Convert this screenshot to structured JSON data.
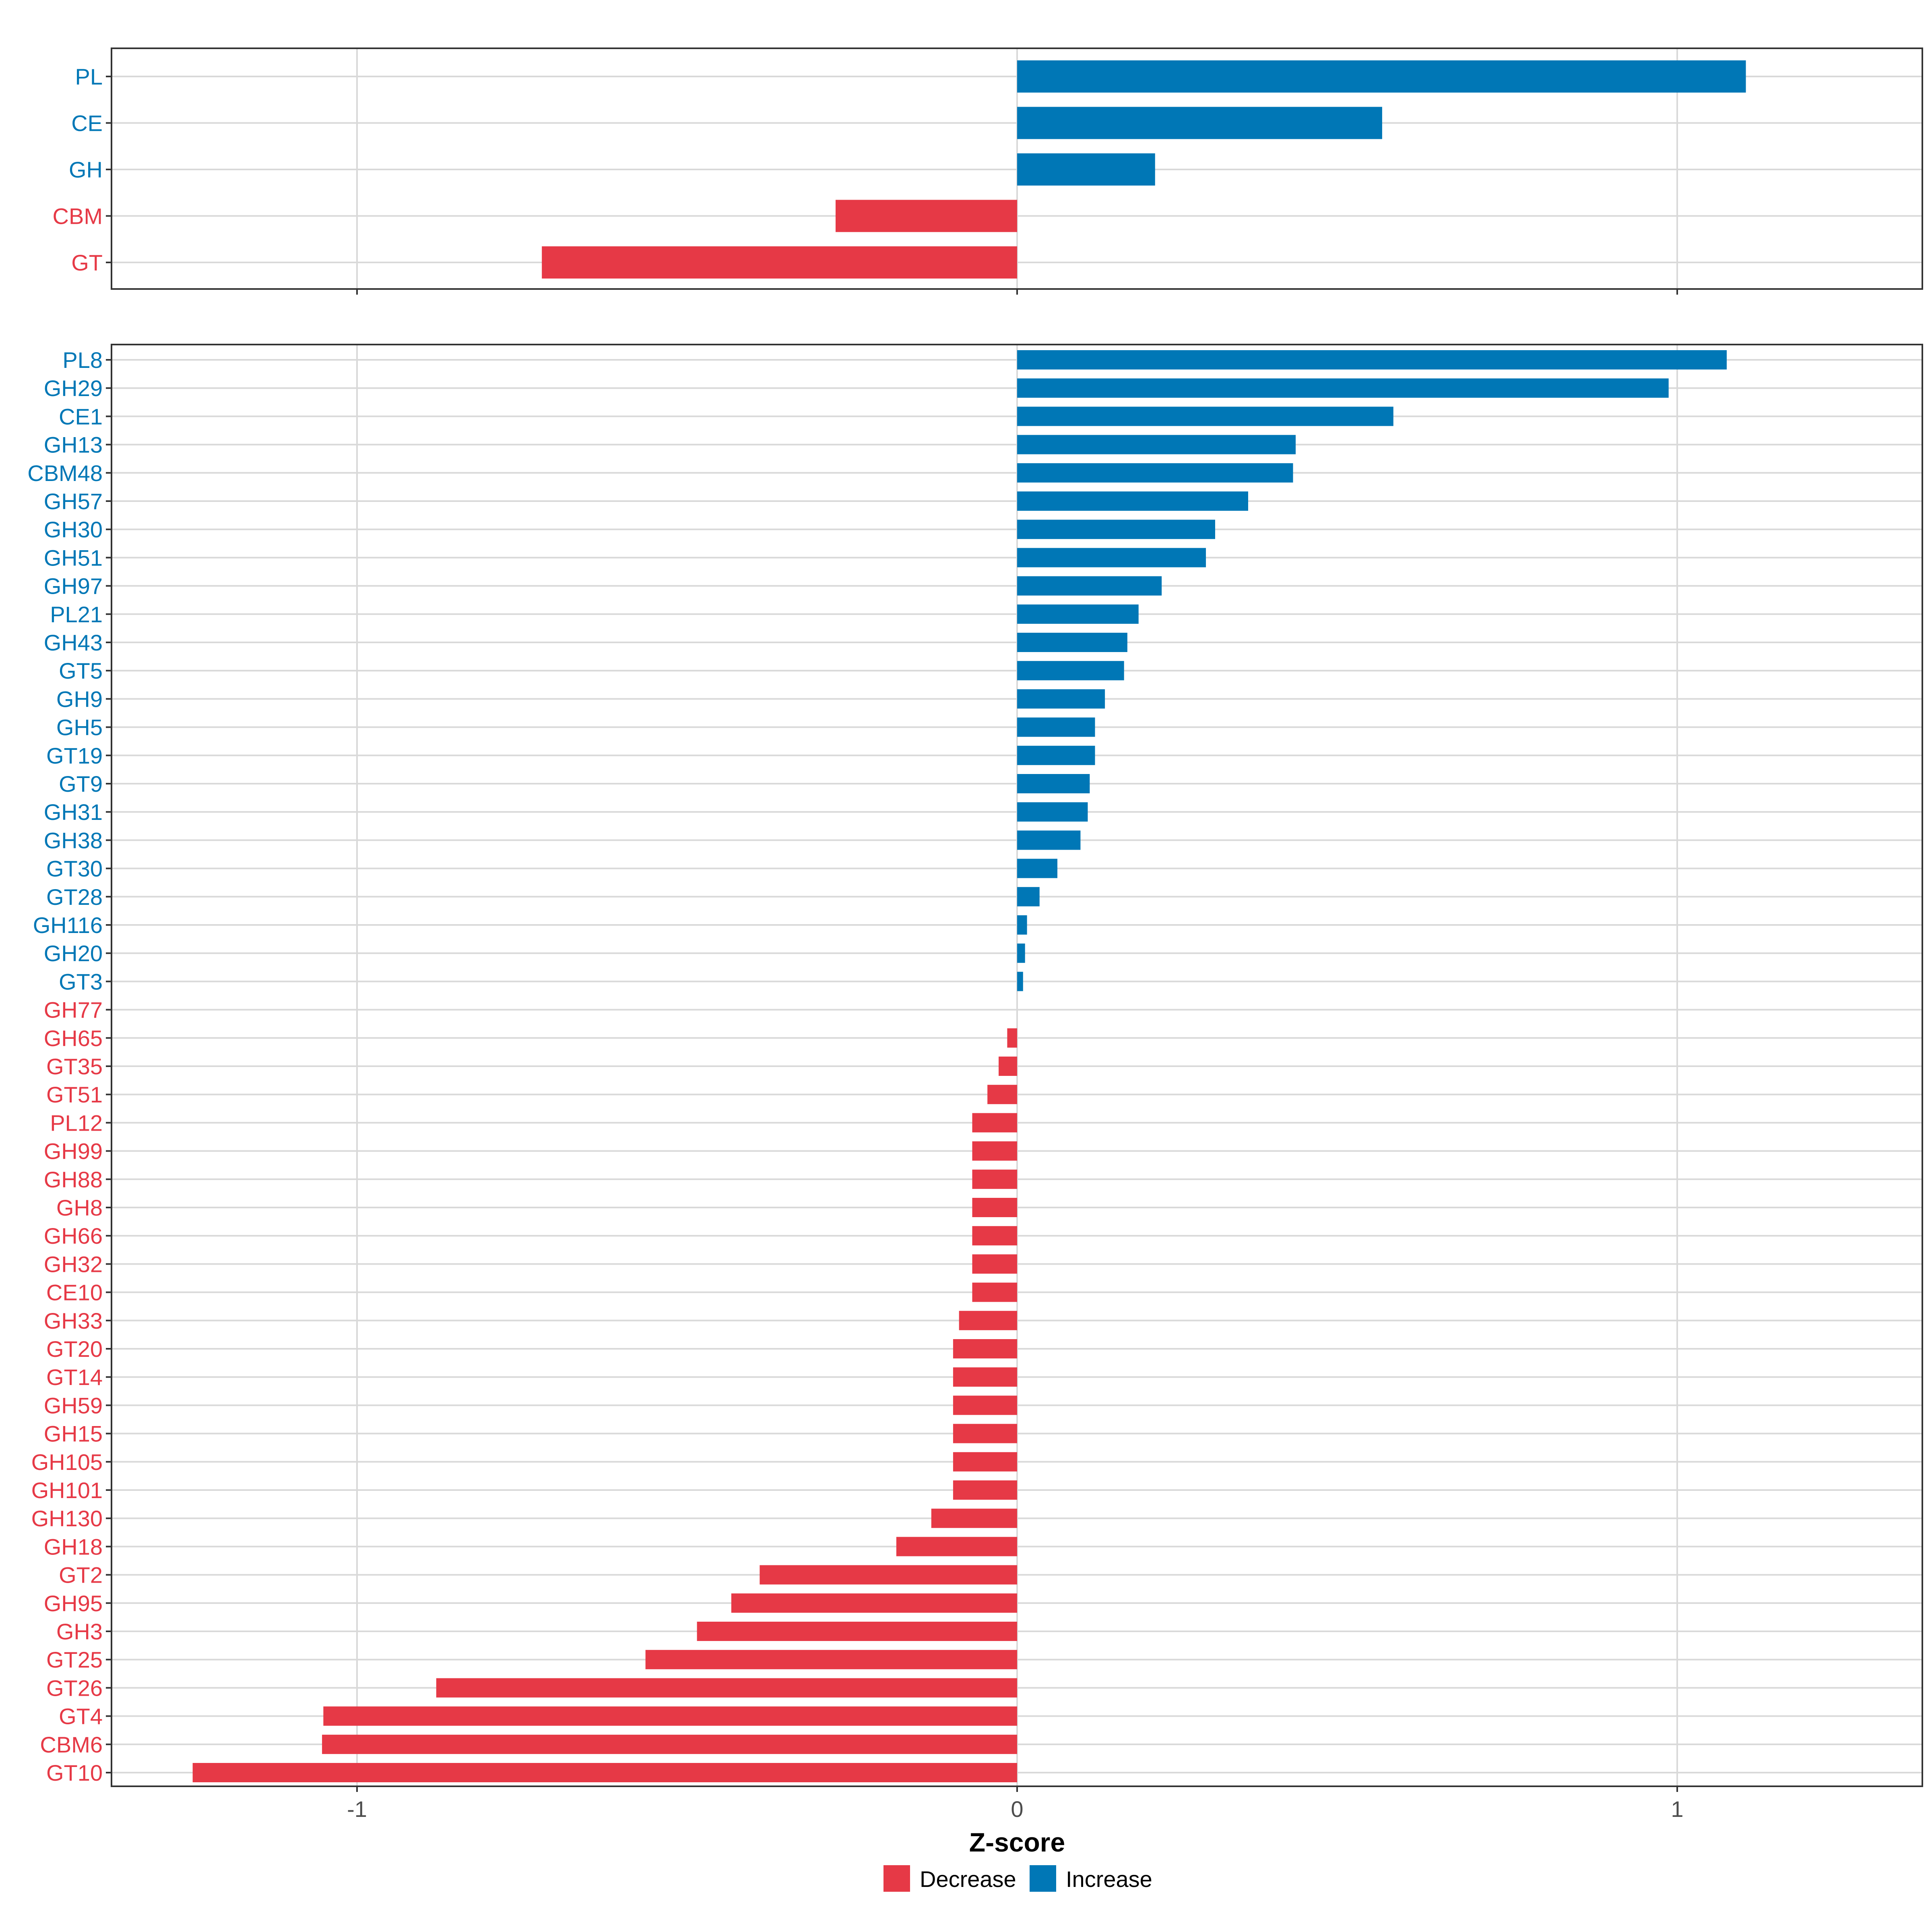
{
  "chart_data": [
    {
      "type": "bar",
      "orientation": "horizontal",
      "panel": "top",
      "categories": [
        "PL",
        "CE",
        "GH",
        "CBM",
        "GT"
      ],
      "values": [
        1.104,
        0.553,
        0.209,
        -0.275,
        -0.72
      ],
      "direction": [
        "Increase",
        "Increase",
        "Increase",
        "Decrease",
        "Decrease"
      ],
      "xlim": [
        -1.38,
        1.38
      ],
      "xticks": [
        -1,
        0,
        1
      ],
      "xtick_labels": [
        "-1",
        "0",
        "1"
      ],
      "grid": true
    },
    {
      "type": "bar",
      "orientation": "horizontal",
      "panel": "bottom",
      "categories": [
        "PL8",
        "GH29",
        "CE1",
        "GH13",
        "CBM48",
        "GH57",
        "GH30",
        "GH51",
        "GH97",
        "PL21",
        "GH43",
        "GT5",
        "GH9",
        "GH5",
        "GT19",
        "GT9",
        "GH31",
        "GH38",
        "GT30",
        "GT28",
        "GH116",
        "GH20",
        "GT3",
        "GH77",
        "GH65",
        "GT35",
        "GT51",
        "PL12",
        "GH99",
        "GH88",
        "GH8",
        "GH66",
        "GH32",
        "CE10",
        "GH33",
        "GT20",
        "GT14",
        "GH59",
        "GH15",
        "GH105",
        "GH101",
        "GH130",
        "GH18",
        "GT2",
        "GH95",
        "GH3",
        "GT25",
        "GT26",
        "GT4",
        "CBM6",
        "GT10"
      ],
      "values": [
        1.075,
        0.987,
        0.57,
        0.422,
        0.418,
        0.35,
        0.3,
        0.286,
        0.219,
        0.184,
        0.167,
        0.162,
        0.133,
        0.118,
        0.118,
        0.11,
        0.107,
        0.096,
        0.061,
        0.034,
        0.015,
        0.012,
        0.009,
        0.0,
        -0.015,
        -0.028,
        -0.045,
        -0.068,
        -0.068,
        -0.068,
        -0.068,
        -0.068,
        -0.068,
        -0.068,
        -0.088,
        -0.097,
        -0.097,
        -0.097,
        -0.097,
        -0.097,
        -0.097,
        -0.13,
        -0.183,
        -0.39,
        -0.433,
        -0.485,
        -0.563,
        -0.88,
        -1.051,
        -1.053,
        -1.249
      ],
      "direction": [
        "Increase",
        "Increase",
        "Increase",
        "Increase",
        "Increase",
        "Increase",
        "Increase",
        "Increase",
        "Increase",
        "Increase",
        "Increase",
        "Increase",
        "Increase",
        "Increase",
        "Increase",
        "Increase",
        "Increase",
        "Increase",
        "Increase",
        "Increase",
        "Increase",
        "Increase",
        "Increase",
        "Decrease",
        "Decrease",
        "Decrease",
        "Decrease",
        "Decrease",
        "Decrease",
        "Decrease",
        "Decrease",
        "Decrease",
        "Decrease",
        "Decrease",
        "Decrease",
        "Decrease",
        "Decrease",
        "Decrease",
        "Decrease",
        "Decrease",
        "Decrease",
        "Decrease",
        "Decrease",
        "Decrease",
        "Decrease",
        "Decrease",
        "Decrease",
        "Decrease",
        "Decrease",
        "Decrease",
        "Decrease"
      ],
      "xlim": [
        -1.38,
        1.38
      ],
      "xticks": [
        -1,
        0,
        1
      ],
      "xtick_labels": [
        "-1",
        "0",
        "1"
      ],
      "xlabel": "Z-score",
      "grid": true
    }
  ],
  "legend": {
    "position": "bottom",
    "items": [
      {
        "label": "Decrease",
        "color": "#e63946"
      },
      {
        "label": "Increase",
        "color": "#0077b6"
      }
    ]
  },
  "colors": {
    "Decrease": "#e63946",
    "Increase": "#0077b6",
    "grid": "#d9d9d9",
    "frame": "#333333"
  }
}
